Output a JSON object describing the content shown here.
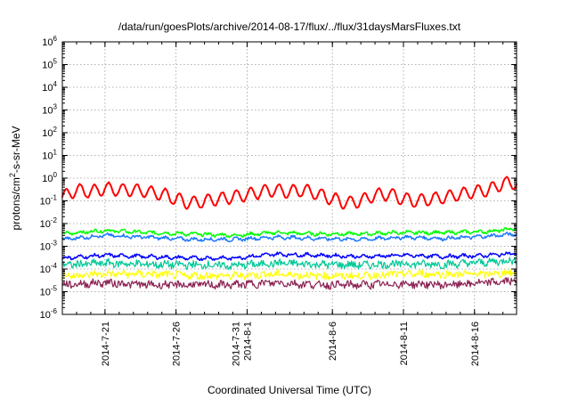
{
  "chart_data": {
    "type": "line",
    "title": "/data/run/goesPlots/archive/2014-08-17/flux/../flux/31daysMarsFluxes.txt",
    "xlabel": "Coordinated Universal Time (UTC)",
    "ylabel_main": "protons/cm",
    "ylabel_sup": "2",
    "ylabel_tail": "-s-sr-MeV",
    "y_scale": "log",
    "ylim": [
      1e-06,
      1000000.0
    ],
    "xlim": [
      "2014-07-18T00:00",
      "2014-08-18T23:00"
    ],
    "grid": true,
    "y_ticks": [
      {
        "value": 1e-06,
        "base": "10",
        "exp": "-6"
      },
      {
        "value": 1e-05,
        "base": "10",
        "exp": "-5"
      },
      {
        "value": 0.0001,
        "base": "10",
        "exp": "-4"
      },
      {
        "value": 0.001,
        "base": "10",
        "exp": "-3"
      },
      {
        "value": 0.01,
        "base": "10",
        "exp": "-2"
      },
      {
        "value": 0.1,
        "base": "10",
        "exp": "-1"
      },
      {
        "value": 1.0,
        "base": "10",
        "exp": "0"
      },
      {
        "value": 10.0,
        "base": "10",
        "exp": "1"
      },
      {
        "value": 100.0,
        "base": "10",
        "exp": "2"
      },
      {
        "value": 1000.0,
        "base": "10",
        "exp": "3"
      },
      {
        "value": 10000.0,
        "base": "10",
        "exp": "4"
      },
      {
        "value": 100000.0,
        "base": "10",
        "exp": "5"
      },
      {
        "value": 1000000.0,
        "base": "10",
        "exp": "6"
      }
    ],
    "x_ticks": [
      {
        "date": "2014-07-21",
        "lines": [
          "2014-7-21"
        ]
      },
      {
        "date": "2014-07-26",
        "lines": [
          "2014-7-26"
        ]
      },
      {
        "date": "2014-07-31",
        "lines": [
          "2014-7-31",
          "2014-8-1"
        ]
      },
      {
        "date": "2014-08-06",
        "lines": [
          "2014-8-6"
        ]
      },
      {
        "date": "2014-08-11",
        "lines": [
          "2014-8-11"
        ]
      },
      {
        "date": "2014-08-16",
        "lines": [
          "2014-8-16"
        ]
      }
    ],
    "series": [
      {
        "color": "#ff0000",
        "stroke_width": 2,
        "x": [
          "2014-07-18",
          "2014-07-19",
          "2014-07-20",
          "2014-07-21",
          "2014-07-22",
          "2014-07-23",
          "2014-07-24",
          "2014-07-25",
          "2014-07-26",
          "2014-07-27",
          "2014-07-28",
          "2014-07-29",
          "2014-07-30",
          "2014-07-31",
          "2014-08-01",
          "2014-08-02",
          "2014-08-03",
          "2014-08-04",
          "2014-08-05",
          "2014-08-06",
          "2014-08-07",
          "2014-08-08",
          "2014-08-09",
          "2014-08-10",
          "2014-08-11",
          "2014-08-12",
          "2014-08-13",
          "2014-08-14",
          "2014-08-15",
          "2014-08-16",
          "2014-08-17",
          "2014-08-18"
        ],
        "y": [
          0.15,
          0.3,
          0.25,
          0.35,
          0.3,
          0.3,
          0.25,
          0.2,
          0.12,
          0.08,
          0.1,
          0.12,
          0.15,
          0.18,
          0.25,
          0.3,
          0.25,
          0.3,
          0.2,
          0.12,
          0.08,
          0.1,
          0.18,
          0.2,
          0.12,
          0.1,
          0.12,
          0.15,
          0.2,
          0.25,
          0.3,
          0.6
        ]
      },
      {
        "color": "#00ff00",
        "stroke_width": 1.5,
        "x": [
          "2014-07-18",
          "2014-07-21",
          "2014-07-24",
          "2014-07-27",
          "2014-07-30",
          "2014-08-02",
          "2014-08-05",
          "2014-08-08",
          "2014-08-11",
          "2014-08-14",
          "2014-08-17",
          "2014-08-18T23:00"
        ],
        "y": [
          0.0035,
          0.005,
          0.004,
          0.0035,
          0.003,
          0.004,
          0.0035,
          0.0035,
          0.004,
          0.004,
          0.0045,
          0.006
        ]
      },
      {
        "color": "#1e78ff",
        "stroke_width": 1.5,
        "x": [
          "2014-07-18",
          "2014-07-21",
          "2014-07-24",
          "2014-07-27",
          "2014-07-30",
          "2014-08-02",
          "2014-08-05",
          "2014-08-08",
          "2014-08-11",
          "2014-08-14",
          "2014-08-17",
          "2014-08-18T23:00"
        ],
        "y": [
          0.002,
          0.003,
          0.0025,
          0.002,
          0.002,
          0.0025,
          0.0022,
          0.002,
          0.0025,
          0.0022,
          0.0028,
          0.0035
        ]
      },
      {
        "color": "#0000ff",
        "stroke_width": 1.5,
        "x": [
          "2014-07-18",
          "2014-07-21",
          "2014-07-24",
          "2014-07-27",
          "2014-07-30",
          "2014-08-02",
          "2014-08-05",
          "2014-08-08",
          "2014-08-11",
          "2014-08-14",
          "2014-08-17",
          "2014-08-18T23:00"
        ],
        "y": [
          0.0003,
          0.0004,
          0.00035,
          0.0003,
          0.0003,
          0.00045,
          0.0004,
          0.00035,
          0.0004,
          0.00035,
          0.0004,
          0.0005
        ]
      },
      {
        "color": "#00c896",
        "stroke_width": 1.2,
        "x": [
          "2014-07-18",
          "2014-07-21",
          "2014-07-24",
          "2014-07-27",
          "2014-07-30",
          "2014-08-02",
          "2014-08-05",
          "2014-08-08",
          "2014-08-11",
          "2014-08-14",
          "2014-08-17",
          "2014-08-18T23:00"
        ],
        "y": [
          0.00015,
          0.00018,
          0.00016,
          0.00015,
          0.00014,
          0.00018,
          0.00016,
          0.00015,
          0.00017,
          0.00016,
          0.0002,
          0.00025
        ]
      },
      {
        "color": "#ffff00",
        "stroke_width": 1.2,
        "x": [
          "2014-07-18",
          "2014-07-21",
          "2014-07-24",
          "2014-07-27",
          "2014-07-30",
          "2014-08-02",
          "2014-08-05",
          "2014-08-08",
          "2014-08-11",
          "2014-08-14",
          "2014-08-17",
          "2014-08-18T23:00"
        ],
        "y": [
          5e-05,
          6e-05,
          6e-05,
          5e-05,
          5e-05,
          6e-05,
          5e-05,
          5e-05,
          6e-05,
          6e-05,
          6e-05,
          7e-05
        ]
      },
      {
        "color": "#8b2252",
        "stroke_width": 1.2,
        "x": [
          "2014-07-18",
          "2014-07-21",
          "2014-07-24",
          "2014-07-27",
          "2014-07-30",
          "2014-08-02",
          "2014-08-05",
          "2014-08-08",
          "2014-08-11",
          "2014-08-14",
          "2014-08-17",
          "2014-08-18T23:00"
        ],
        "y": [
          2e-05,
          2.5e-05,
          2e-05,
          2e-05,
          2e-05,
          2.5e-05,
          2e-05,
          2e-05,
          2.2e-05,
          2e-05,
          2.5e-05,
          3e-05
        ]
      }
    ]
  }
}
